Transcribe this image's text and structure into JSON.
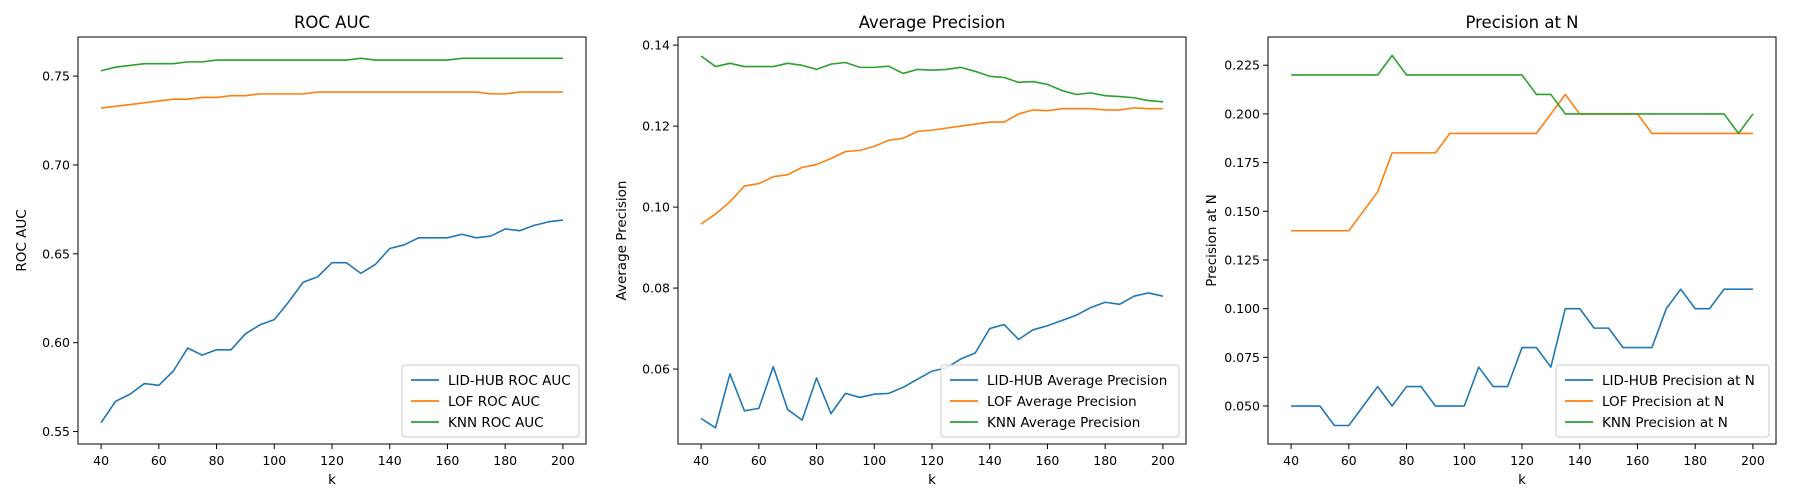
{
  "chart_data": [
    {
      "type": "line",
      "title": "ROC AUC",
      "xlabel": "k",
      "ylabel": "ROC AUC",
      "xlim": [
        32,
        208
      ],
      "ylim": [
        0.543,
        0.772
      ],
      "xticks": [
        40,
        60,
        80,
        100,
        120,
        140,
        160,
        180,
        200
      ],
      "yticks": [
        0.55,
        0.6,
        0.65,
        0.7,
        0.75
      ],
      "ytick_labels": [
        "0.55",
        "0.60",
        "0.65",
        "0.70",
        "0.75"
      ],
      "grid": false,
      "legend_position": "lower-right",
      "x": [
        40,
        45,
        50,
        55,
        60,
        65,
        70,
        75,
        80,
        85,
        90,
        95,
        100,
        105,
        110,
        115,
        120,
        125,
        130,
        135,
        140,
        145,
        150,
        155,
        160,
        165,
        170,
        175,
        180,
        185,
        190,
        195,
        200
      ],
      "series": [
        {
          "name": "LID-HUB ROC AUC",
          "color": "#1f77b4",
          "values": [
            0.555,
            0.567,
            0.571,
            0.577,
            0.576,
            0.584,
            0.597,
            0.593,
            0.596,
            0.596,
            0.605,
            0.61,
            0.613,
            0.623,
            0.634,
            0.637,
            0.645,
            0.645,
            0.639,
            0.644,
            0.653,
            0.655,
            0.659,
            0.659,
            0.659,
            0.661,
            0.659,
            0.66,
            0.664,
            0.663,
            0.666,
            0.668,
            0.669
          ]
        },
        {
          "name": "LOF ROC AUC",
          "color": "#ff7f0e",
          "values": [
            0.732,
            0.733,
            0.734,
            0.735,
            0.736,
            0.737,
            0.737,
            0.738,
            0.738,
            0.739,
            0.739,
            0.74,
            0.74,
            0.74,
            0.74,
            0.741,
            0.741,
            0.741,
            0.741,
            0.741,
            0.741,
            0.741,
            0.741,
            0.741,
            0.741,
            0.741,
            0.741,
            0.74,
            0.74,
            0.741,
            0.741,
            0.741,
            0.741
          ]
        },
        {
          "name": "KNN ROC AUC",
          "color": "#2ca02c",
          "values": [
            0.753,
            0.755,
            0.756,
            0.757,
            0.757,
            0.757,
            0.758,
            0.758,
            0.759,
            0.759,
            0.759,
            0.759,
            0.759,
            0.759,
            0.759,
            0.759,
            0.759,
            0.759,
            0.76,
            0.759,
            0.759,
            0.759,
            0.759,
            0.759,
            0.759,
            0.76,
            0.76,
            0.76,
            0.76,
            0.76,
            0.76,
            0.76,
            0.76
          ]
        }
      ]
    },
    {
      "type": "line",
      "title": "Average Precision",
      "xlabel": "k",
      "ylabel": "Average Precision",
      "xlim": [
        32,
        208
      ],
      "ylim": [
        0.0415,
        0.142
      ],
      "xticks": [
        40,
        60,
        80,
        100,
        120,
        140,
        160,
        180,
        200
      ],
      "yticks": [
        0.06,
        0.08,
        0.1,
        0.12,
        0.14
      ],
      "ytick_labels": [
        "0.06",
        "0.08",
        "0.10",
        "0.12",
        "0.14"
      ],
      "grid": false,
      "legend_position": "lower-right",
      "x": [
        40,
        45,
        50,
        55,
        60,
        65,
        70,
        75,
        80,
        85,
        90,
        95,
        100,
        105,
        110,
        115,
        120,
        125,
        130,
        135,
        140,
        145,
        150,
        155,
        160,
        165,
        170,
        175,
        180,
        185,
        190,
        195,
        200
      ],
      "series": [
        {
          "name": "LID-HUB Average Precision",
          "color": "#1f77b4",
          "values": [
            0.0478,
            0.0455,
            0.0588,
            0.0497,
            0.0503,
            0.0606,
            0.05,
            0.0474,
            0.0578,
            0.049,
            0.054,
            0.053,
            0.0538,
            0.054,
            0.0555,
            0.0575,
            0.0595,
            0.0603,
            0.0625,
            0.064,
            0.07,
            0.071,
            0.0673,
            0.0697,
            0.0707,
            0.072,
            0.0733,
            0.0752,
            0.0765,
            0.076,
            0.078,
            0.0788,
            0.078
          ]
        },
        {
          "name": "LOF Average Precision",
          "color": "#ff7f0e",
          "values": [
            0.0958,
            0.0983,
            0.1013,
            0.1052,
            0.1058,
            0.1075,
            0.108,
            0.1098,
            0.1105,
            0.112,
            0.1137,
            0.114,
            0.115,
            0.1165,
            0.117,
            0.1187,
            0.119,
            0.1195,
            0.12,
            0.1205,
            0.121,
            0.121,
            0.123,
            0.124,
            0.1238,
            0.1243,
            0.1243,
            0.1243,
            0.124,
            0.124,
            0.1245,
            0.1243,
            0.1243
          ]
        },
        {
          "name": "KNN Average Precision",
          "color": "#2ca02c",
          "values": [
            0.1373,
            0.1347,
            0.1355,
            0.1347,
            0.1347,
            0.1347,
            0.1355,
            0.135,
            0.134,
            0.1353,
            0.1357,
            0.1345,
            0.1345,
            0.1348,
            0.133,
            0.134,
            0.1338,
            0.134,
            0.1345,
            0.1335,
            0.1323,
            0.132,
            0.1308,
            0.131,
            0.1303,
            0.1288,
            0.1278,
            0.1282,
            0.1275,
            0.1273,
            0.127,
            0.1263,
            0.126
          ]
        }
      ]
    },
    {
      "type": "line",
      "title": "Precision at N",
      "xlabel": "k",
      "ylabel": "Precision at N",
      "xlim": [
        32,
        208
      ],
      "ylim": [
        0.0305,
        0.2395
      ],
      "xticks": [
        40,
        60,
        80,
        100,
        120,
        140,
        160,
        180,
        200
      ],
      "yticks": [
        0.05,
        0.075,
        0.1,
        0.125,
        0.15,
        0.175,
        0.2,
        0.225
      ],
      "ytick_labels": [
        "0.050",
        "0.075",
        "0.100",
        "0.125",
        "0.150",
        "0.175",
        "0.200",
        "0.225"
      ],
      "grid": false,
      "legend_position": "lower-right",
      "x": [
        40,
        45,
        50,
        55,
        60,
        65,
        70,
        75,
        80,
        85,
        90,
        95,
        100,
        105,
        110,
        115,
        120,
        125,
        130,
        135,
        140,
        145,
        150,
        155,
        160,
        165,
        170,
        175,
        180,
        185,
        190,
        195,
        200
      ],
      "series": [
        {
          "name": "LID-HUB Precision at N",
          "color": "#1f77b4",
          "values": [
            0.05,
            0.05,
            0.05,
            0.04,
            0.04,
            0.05,
            0.06,
            0.05,
            0.06,
            0.06,
            0.05,
            0.05,
            0.05,
            0.07,
            0.06,
            0.06,
            0.08,
            0.08,
            0.07,
            0.1,
            0.1,
            0.09,
            0.09,
            0.08,
            0.08,
            0.08,
            0.1,
            0.11,
            0.1,
            0.1,
            0.11,
            0.11,
            0.11
          ]
        },
        {
          "name": "LOF Precision at N",
          "color": "#ff7f0e",
          "values": [
            0.14,
            0.14,
            0.14,
            0.14,
            0.14,
            0.15,
            0.16,
            0.18,
            0.18,
            0.18,
            0.18,
            0.19,
            0.19,
            0.19,
            0.19,
            0.19,
            0.19,
            0.19,
            0.2,
            0.21,
            0.2,
            0.2,
            0.2,
            0.2,
            0.2,
            0.19,
            0.19,
            0.19,
            0.19,
            0.19,
            0.19,
            0.19,
            0.19
          ]
        },
        {
          "name": "KNN Precision at N",
          "color": "#2ca02c",
          "values": [
            0.22,
            0.22,
            0.22,
            0.22,
            0.22,
            0.22,
            0.22,
            0.23,
            0.22,
            0.22,
            0.22,
            0.22,
            0.22,
            0.22,
            0.22,
            0.22,
            0.22,
            0.21,
            0.21,
            0.2,
            0.2,
            0.2,
            0.2,
            0.2,
            0.2,
            0.2,
            0.2,
            0.2,
            0.2,
            0.2,
            0.2,
            0.19,
            0.2
          ]
        }
      ]
    }
  ]
}
